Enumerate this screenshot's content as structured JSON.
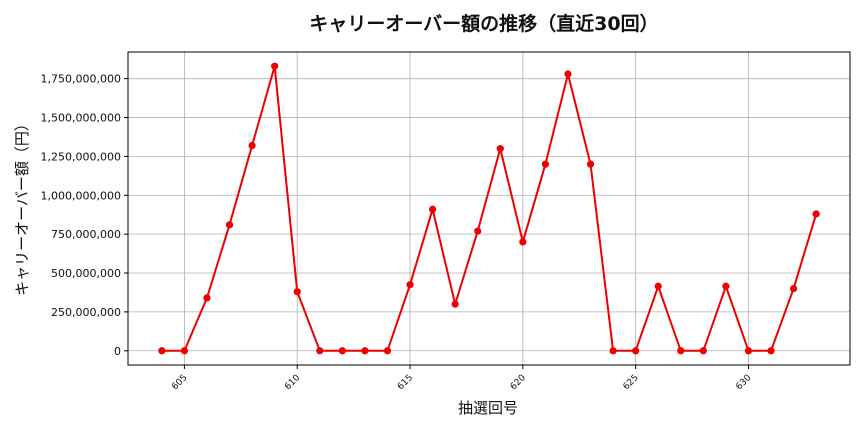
{
  "chart_data": {
    "type": "line",
    "title": "キャリーオーバー額の推移（直近30回）",
    "xlabel": "抽選回号",
    "ylabel": "キャリーオーバー額（円）",
    "x": [
      604,
      605,
      606,
      607,
      608,
      609,
      610,
      611,
      612,
      613,
      614,
      615,
      616,
      617,
      618,
      619,
      620,
      621,
      622,
      623,
      624,
      625,
      626,
      627,
      628,
      629,
      630,
      631,
      632,
      633
    ],
    "series": [
      {
        "color": "#ee0000",
        "marker": "circle",
        "values": [
          0,
          0,
          340000000,
          810000000,
          1320000000,
          1830000000,
          380000000,
          0,
          0,
          0,
          0,
          425000000,
          910000000,
          300000000,
          770000000,
          1300000000,
          700000000,
          1200000000,
          1780000000,
          1200000000,
          0,
          0,
          415000000,
          0,
          0,
          415000000,
          0,
          0,
          400000000,
          880000000
        ]
      }
    ],
    "xticks": [
      605,
      610,
      615,
      620,
      625,
      630
    ],
    "xtick_labels": [
      "605",
      "610",
      "615",
      "620",
      "625",
      "630"
    ],
    "yticks": [
      0,
      250000000,
      500000000,
      750000000,
      1000000000,
      1250000000,
      1500000000,
      1750000000
    ],
    "ytick_labels": [
      "0",
      "250,000,000",
      "500,000,000",
      "750,000,000",
      "1,000,000,000",
      "1,250,000,000",
      "1,500,000,000",
      "1,750,000,000"
    ],
    "xlim": [
      602.5,
      634.5
    ],
    "ylim": [
      -91500000,
      1921500000
    ],
    "grid": true,
    "xtick_rotation": "45 degrees"
  }
}
